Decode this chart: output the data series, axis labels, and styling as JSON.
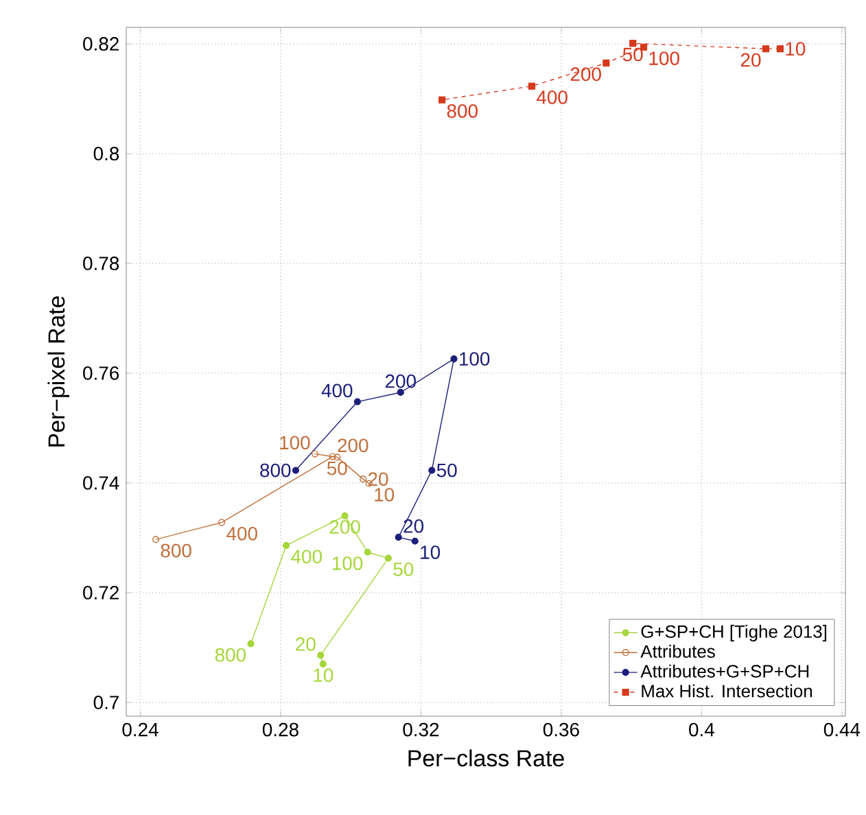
{
  "chart_data": {
    "type": "line",
    "xlabel": "Per−class Rate",
    "ylabel": "Per−pixel Rate",
    "xlim": [
      0.236,
      0.441
    ],
    "ylim": [
      0.6975,
      0.823
    ],
    "xticks": [
      0.24,
      0.28,
      0.32,
      0.36,
      0.4,
      0.44
    ],
    "yticks": [
      0.7,
      0.72,
      0.74,
      0.76,
      0.78,
      0.8,
      0.82
    ],
    "grid": true,
    "legend": "bottom right",
    "series": [
      {
        "name": "G+SP+CH [Tighe 2013]",
        "color": "#a6d63a",
        "marker": "circle",
        "x": [
          0.2921,
          0.2914,
          0.3107,
          0.3048,
          0.2983,
          0.2816,
          0.2715
        ],
        "values": [
          0.707,
          0.7086,
          0.7263,
          0.7274,
          0.734,
          0.7286,
          0.7107
        ]
      },
      {
        "name": "Attributes",
        "color": "#c0703c",
        "marker": "open circle",
        "x": [
          0.3052,
          0.3035,
          0.2961,
          0.2898,
          0.2948,
          0.2632,
          0.2444
        ],
        "values": [
          0.7399,
          0.7407,
          0.7447,
          0.7453,
          0.7448,
          0.7328,
          0.7297
        ]
      },
      {
        "name": "Attributes+G+SP+CH",
        "color": "#1c1f7a",
        "marker": "circle",
        "x": [
          0.3183,
          0.3136,
          0.3231,
          0.3294,
          0.3142,
          0.3019,
          0.2843
        ],
        "values": [
          0.7294,
          0.7301,
          0.7423,
          0.7626,
          0.7565,
          0.7548,
          0.7423
        ]
      },
      {
        "name": "Max Hist. Intersection",
        "color": "#d63a1e",
        "marker": "square",
        "line_style": "dashed",
        "x": [
          0.4224,
          0.4183,
          0.3804,
          0.3835,
          0.3728,
          0.3516,
          0.326
        ],
        "values": [
          0.8191,
          0.8191,
          0.8201,
          0.8194,
          0.8165,
          0.8123,
          0.8098
        ]
      }
    ],
    "annotations": [
      {
        "text": "10",
        "x": 0.2921,
        "y": 0.707
      },
      {
        "text": "20",
        "x": 0.2914,
        "y": 0.7086
      },
      {
        "text": "50",
        "x": 0.3107,
        "y": 0.7263
      },
      {
        "text": "100",
        "x": 0.3048,
        "y": 0.7274
      },
      {
        "text": "200",
        "x": 0.2983,
        "y": 0.734
      },
      {
        "text": "400",
        "x": 0.2816,
        "y": 0.7286
      },
      {
        "text": "800",
        "x": 0.2715,
        "y": 0.7107
      },
      {
        "text": "10",
        "x": 0.3052,
        "y": 0.7399
      },
      {
        "text": "20",
        "x": 0.3035,
        "y": 0.7407
      },
      {
        "text": "50",
        "x": 0.2961,
        "y": 0.7447
      },
      {
        "text": "100",
        "x": 0.2898,
        "y": 0.7453
      },
      {
        "text": "200",
        "x": 0.2948,
        "y": 0.7448
      },
      {
        "text": "400",
        "x": 0.2632,
        "y": 0.7328
      },
      {
        "text": "800",
        "x": 0.2444,
        "y": 0.7297
      },
      {
        "text": "10",
        "x": 0.3183,
        "y": 0.7294
      },
      {
        "text": "20",
        "x": 0.3136,
        "y": 0.7301
      },
      {
        "text": "50",
        "x": 0.3231,
        "y": 0.7423
      },
      {
        "text": "100",
        "x": 0.3294,
        "y": 0.7626
      },
      {
        "text": "200",
        "x": 0.3142,
        "y": 0.7565
      },
      {
        "text": "400",
        "x": 0.3019,
        "y": 0.7548
      },
      {
        "text": "800",
        "x": 0.2843,
        "y": 0.7423
      },
      {
        "text": "10",
        "x": 0.4224,
        "y": 0.8191
      },
      {
        "text": "20",
        "x": 0.4183,
        "y": 0.8191
      },
      {
        "text": "50",
        "x": 0.3804,
        "y": 0.8201
      },
      {
        "text": "100",
        "x": 0.3835,
        "y": 0.8194
      },
      {
        "text": "200",
        "x": 0.3728,
        "y": 0.8165
      },
      {
        "text": "400",
        "x": 0.3516,
        "y": 0.8123
      },
      {
        "text": "800",
        "x": 0.326,
        "y": 0.8098
      }
    ]
  }
}
